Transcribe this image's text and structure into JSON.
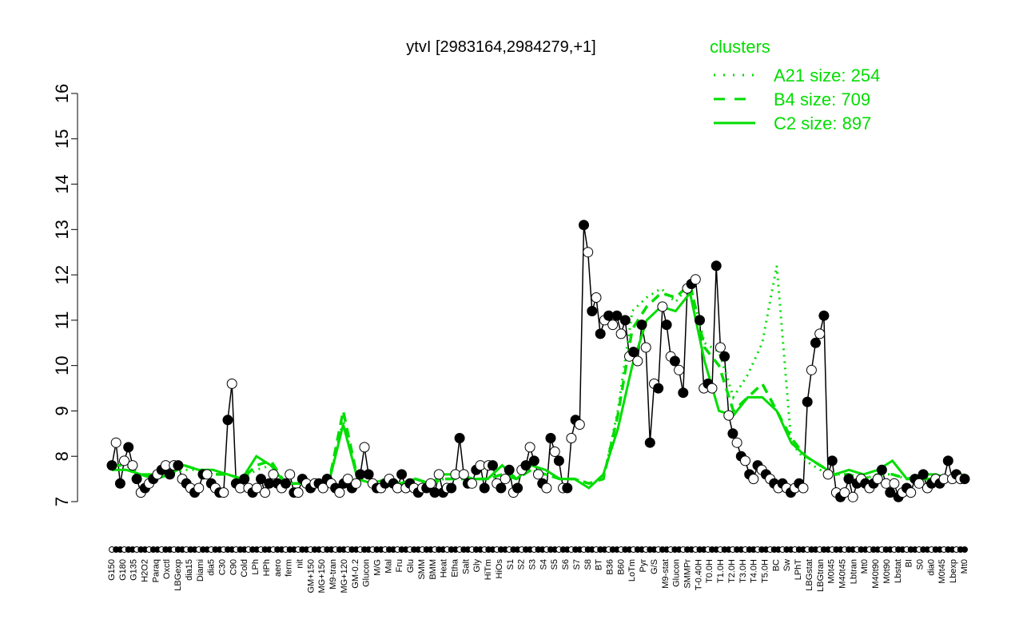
{
  "chart_data": {
    "type": "line",
    "title": "ytvI [2983164,2984279,+1]",
    "xlabel": "",
    "ylabel": "",
    "ylim": [
      7,
      16
    ],
    "yticks": [
      7,
      8,
      9,
      10,
      11,
      12,
      13,
      14,
      15,
      16
    ],
    "x_tick_labels": [
      "G150",
      "G180",
      "G135",
      "H2O2",
      "Paraq",
      "Oxctl",
      "LBGexp",
      "dia15",
      "Diami",
      "dia5",
      "C30",
      "C90",
      "Cold",
      "LPh",
      "HPh",
      "aero",
      "ferm",
      "nit",
      "GM+150",
      "MG+150",
      "M9-tran",
      "MG+120",
      "GM-0.2",
      "Glucon",
      "M/G",
      "Mal",
      "Fru",
      "Glu",
      "SMM",
      "BMM",
      "Heat",
      "Etha",
      "Salt",
      "Gly",
      "HiTm",
      "HiOs",
      "S1",
      "S2",
      "S3",
      "S4",
      "S5",
      "S6",
      "S7",
      "S8",
      "BT",
      "B36",
      "B60",
      "LoTm",
      "Pyr",
      "G/S",
      "M9-stat",
      "Glucon",
      "SMMPr",
      "T-0.40H",
      "T0.0H",
      "T1.0H",
      "T2.0H",
      "T3.0H",
      "T4.0H",
      "T5.0H",
      "BC",
      "Sw",
      "LPhT",
      "LBGstat",
      "LBGtran",
      "M0t45",
      "M40t45",
      "Lbtran",
      "Mt0",
      "M40t90",
      "M0t90",
      "Lbstat",
      "BI",
      "S0",
      "dia0",
      "M0t45",
      "Lbexp",
      "Mt0"
    ],
    "legend": {
      "title": "clusters",
      "position": "top-right",
      "color": "#00dd00",
      "entries": [
        {
          "label": "A21 size: 254",
          "style": "dotted"
        },
        {
          "label": "B4 size: 709",
          "style": "dashed"
        },
        {
          "label": "C2 size: 897",
          "style": "solid"
        }
      ]
    },
    "series": [
      {
        "name": "ytvI",
        "color": "#000000",
        "marker": "circle",
        "values": [
          7.8,
          8.3,
          7.4,
          7.9,
          8.2,
          7.8,
          7.5,
          7.2,
          7.3,
          7.4,
          7.5,
          7.6,
          7.7,
          7.8,
          7.6,
          7.8,
          7.8,
          7.5,
          7.4,
          7.3,
          7.2,
          7.3,
          7.6,
          7.6,
          7.4,
          7.3,
          7.2,
          7.2,
          8.8,
          9.6,
          7.4,
          7.3,
          7.5,
          7.3,
          7.2,
          7.3,
          7.5,
          7.2,
          7.4,
          7.6,
          7.4,
          7.3,
          7.4,
          7.6,
          7.2,
          7.2,
          7.5,
          7.4,
          7.3,
          7.4,
          7.4,
          7.3,
          7.5,
          7.4,
          7.3,
          7.2,
          7.4,
          7.5,
          7.3,
          7.4,
          7.6,
          8.2,
          7.6,
          7.4,
          7.3,
          7.3,
          7.4,
          7.5,
          7.4,
          7.3,
          7.6,
          7.3,
          7.4,
          7.3,
          7.2,
          7.3,
          7.3,
          7.4,
          7.2,
          7.6,
          7.2,
          7.3,
          7.3,
          7.6,
          8.4,
          7.6,
          7.4,
          7.4,
          7.7,
          7.8,
          7.3,
          7.8,
          7.8,
          7.4,
          7.3,
          7.5,
          7.7,
          7.2,
          7.3,
          7.7,
          7.8,
          8.2,
          7.9,
          7.6,
          7.4,
          7.3,
          8.4,
          8.1,
          7.9,
          7.3,
          7.3,
          8.4,
          8.8,
          8.7,
          13.1,
          12.5,
          11.2,
          11.5,
          10.7,
          11.0,
          11.1,
          10.9,
          11.1,
          10.7,
          11.0,
          10.2,
          10.3,
          10.1,
          10.9,
          10.4,
          8.3,
          9.6,
          9.5,
          11.3,
          10.9,
          10.2,
          10.1,
          9.9,
          9.4,
          11.7,
          11.8,
          11.9,
          11.0,
          9.5,
          9.6,
          9.5,
          12.2,
          10.4,
          10.2,
          8.9,
          8.5,
          8.3,
          8.0,
          7.9,
          7.6,
          7.5,
          7.8,
          7.7,
          7.6,
          7.5,
          7.4,
          7.3,
          7.4,
          7.3,
          7.2,
          7.3,
          7.4,
          7.3,
          9.2,
          9.9,
          10.5,
          10.7,
          11.1,
          7.6,
          7.9,
          7.2,
          7.1,
          7.2,
          7.5,
          7.1,
          7.4,
          7.5,
          7.4,
          7.3,
          7.4,
          7.5,
          7.7,
          7.4,
          7.2,
          7.4,
          7.1,
          7.2,
          7.3,
          7.2,
          7.5,
          7.4,
          7.6,
          7.3,
          7.4,
          7.5,
          7.4,
          7.5,
          7.9,
          7.5,
          7.6,
          7.5,
          7.5
        ]
      },
      {
        "name": "A21",
        "color": "#00dd00",
        "style": "dotted",
        "values": [
          7.7,
          7.7,
          7.6,
          7.5,
          7.6,
          7.7,
          7.7,
          7.6,
          7.6,
          7.5,
          7.7,
          7.8,
          7.4,
          7.4,
          7.4,
          7.4,
          8.8,
          7.5,
          7.4,
          7.5,
          7.4,
          7.5,
          7.4,
          7.5,
          7.5,
          7.5,
          7.5,
          7.6,
          7.5,
          7.7,
          7.6,
          7.5,
          7.5,
          7.4,
          7.5,
          9.0,
          11.2,
          11.5,
          11.7,
          11.4,
          11.8,
          10.5,
          10.3,
          9.3,
          9.8,
          10.5,
          12.2,
          8.3,
          7.9,
          7.7,
          7.6,
          7.6,
          7.5,
          7.6,
          7.6,
          7.5,
          7.5,
          7.5,
          7.5,
          7.6
        ]
      },
      {
        "name": "B4",
        "color": "#00dd00",
        "style": "dashed",
        "values": [
          7.8,
          7.8,
          7.6,
          7.5,
          7.6,
          7.8,
          7.7,
          7.6,
          7.6,
          7.5,
          7.8,
          7.9,
          7.4,
          7.4,
          7.4,
          7.4,
          9.0,
          7.5,
          7.4,
          7.5,
          7.4,
          7.5,
          7.4,
          7.5,
          7.5,
          7.5,
          7.5,
          7.6,
          7.5,
          7.7,
          7.6,
          7.5,
          7.5,
          7.4,
          7.5,
          8.9,
          10.8,
          11.3,
          11.6,
          11.5,
          11.8,
          10.4,
          10.0,
          9.0,
          9.3,
          9.6,
          9.0,
          8.4,
          8.0,
          7.8,
          7.6,
          7.6,
          7.5,
          7.6,
          7.6,
          7.5,
          7.5,
          7.5,
          7.5,
          7.6
        ]
      },
      {
        "name": "C2",
        "color": "#00dd00",
        "style": "solid",
        "values": [
          7.7,
          7.7,
          7.6,
          7.6,
          7.7,
          7.8,
          7.7,
          7.7,
          7.6,
          7.5,
          8.0,
          7.8,
          7.4,
          7.4,
          7.4,
          7.4,
          8.7,
          7.5,
          7.4,
          7.5,
          7.4,
          7.5,
          7.4,
          7.6,
          7.6,
          7.5,
          7.5,
          7.8,
          7.5,
          7.8,
          7.7,
          7.5,
          7.5,
          7.3,
          7.6,
          8.6,
          10.0,
          11.0,
          11.3,
          11.2,
          11.6,
          10.1,
          9.0,
          8.9,
          9.3,
          9.3,
          9.0,
          8.3,
          8.0,
          7.8,
          7.6,
          7.7,
          7.6,
          7.7,
          7.9,
          7.5,
          7.6,
          7.6,
          7.5,
          7.6
        ]
      }
    ]
  }
}
